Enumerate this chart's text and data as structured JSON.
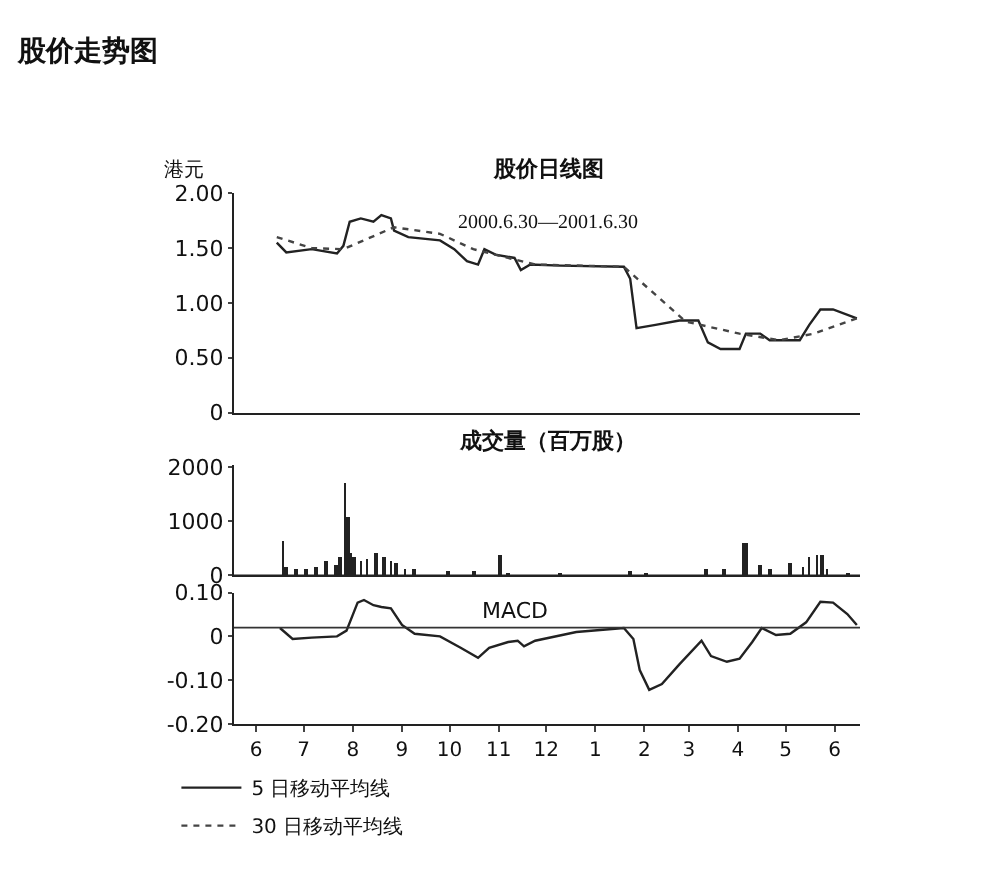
{
  "chart_data": [
    {
      "type": "line",
      "title": "股价日线图",
      "subtitle": "2000.6.30—2001.6.30",
      "ylabel": "港元",
      "annotations": [
        "股价走势图"
      ],
      "xlim": [
        "2000-06-01",
        "2001-07-01"
      ],
      "ylim": [
        0,
        2
      ],
      "yticks": [
        0,
        {
          "value": 0.5,
          "label": "0.50"
        },
        {
          "value": 1,
          "label": "1.00"
        },
        {
          "value": 1.5,
          "label": "1.50"
        },
        {
          "value": 2,
          "label": "2.00"
        }
      ],
      "tick_labels": "y",
      "legend": "bottom left",
      "series": [
        {
          "name": "5 日移动平均线",
          "color": "#222222",
          "line_style": "solid",
          "x": [
            "2000-06-28",
            "2000-07-04",
            "2000-07-20",
            "2000-08-05",
            "2000-08-09",
            "2000-08-13",
            "2000-08-20",
            "2000-08-28",
            "2000-09-02",
            "2000-09-08",
            "2000-09-10",
            "2000-09-19",
            "2000-10-09",
            "2000-10-18",
            "2000-10-26",
            "2000-11-02",
            "2000-11-06",
            "2000-11-13",
            "2000-11-25",
            "2000-11-29",
            "2000-12-05",
            "2000-12-24",
            "2001-02-02",
            "2001-02-06",
            "2001-02-10",
            "2001-02-22",
            "2001-03-09",
            "2001-03-21",
            "2001-03-27",
            "2001-04-04",
            "2001-04-16",
            "2001-04-20",
            "2001-04-29",
            "2001-05-05",
            "2001-05-24",
            "2001-05-30",
            "2001-06-06",
            "2001-06-14",
            "2001-06-29"
          ],
          "values": [
            1.55,
            1.46,
            1.49,
            1.45,
            1.52,
            1.74,
            1.77,
            1.74,
            1.8,
            1.77,
            1.66,
            1.6,
            1.57,
            1.49,
            1.38,
            1.35,
            1.49,
            1.44,
            1.41,
            1.3,
            1.35,
            1.34,
            1.33,
            1.22,
            0.77,
            0.8,
            0.84,
            0.84,
            0.64,
            0.58,
            0.58,
            0.72,
            0.72,
            0.66,
            0.66,
            0.8,
            0.94,
            0.94,
            0.86
          ]
        },
        {
          "name": "30 日移动平均线",
          "color": "#444444",
          "line_style": "dotted",
          "x": [
            "2000-06-28",
            "2000-07-20",
            "2000-08-09",
            "2000-09-10",
            "2000-10-09",
            "2000-10-30",
            "2000-11-21",
            "2000-12-08",
            "2001-02-02",
            "2001-03-13",
            "2001-04-16",
            "2001-05-11",
            "2001-06-02",
            "2001-06-29"
          ],
          "values": [
            1.6,
            1.5,
            1.49,
            1.69,
            1.63,
            1.49,
            1.41,
            1.35,
            1.33,
            0.83,
            0.72,
            0.66,
            0.72,
            0.86
          ]
        }
      ]
    },
    {
      "type": "bar",
      "title": "成交量（百万股）",
      "color": "#222222",
      "xlim": [
        "2000-06-01",
        "2001-07-01"
      ],
      "ylim": [
        0,
        2050
      ],
      "yticks": [
        0,
        1000,
        2000
      ],
      "tick_labels": "y",
      "x": [
        "2000-07-02",
        "2000-07-04",
        "2000-07-10",
        "2000-07-16",
        "2000-07-23",
        "2000-07-29",
        "2000-08-04",
        "2000-08-07",
        "2000-08-10",
        "2000-08-12",
        "2000-08-14",
        "2000-08-16",
        "2000-08-20",
        "2000-08-24",
        "2000-08-30",
        "2000-09-04",
        "2000-09-08",
        "2000-09-11",
        "2000-09-17",
        "2000-09-23",
        "2000-10-14",
        "2000-10-30",
        "2000-11-16",
        "2000-11-21",
        "2000-12-24",
        "2001-02-06",
        "2001-02-16",
        "2001-03-26",
        "2001-04-06",
        "2001-04-18",
        "2001-04-20",
        "2001-04-29",
        "2001-05-05",
        "2001-05-18",
        "2001-05-26",
        "2001-05-30",
        "2001-06-04",
        "2001-06-07",
        "2001-06-10",
        "2001-06-23"
      ],
      "values": [
        640,
        180,
        130,
        130,
        180,
        260,
        200,
        330,
        1700,
        1090,
        430,
        330,
        280,
        300,
        430,
        330,
        260,
        230,
        130,
        130,
        100,
        80,
        380,
        60,
        40,
        100,
        60,
        130,
        130,
        610,
        590,
        200,
        130,
        230,
        180,
        330,
        380,
        400,
        130,
        60
      ]
    },
    {
      "type": "line",
      "color": "#222222",
      "xlim": [
        "2000-06-01",
        "2001-07-01"
      ],
      "ylim": [
        -0.2,
        0.1
      ],
      "xticks": [
        {
          "value": "2000-06-15",
          "label": "6"
        },
        {
          "value": "2000-07-15",
          "label": "7"
        },
        {
          "value": "2000-08-15",
          "label": "8"
        },
        {
          "value": "2000-09-15",
          "label": "9"
        },
        {
          "value": "2000-10-15",
          "label": "10"
        },
        {
          "value": "2000-11-15",
          "label": "11"
        },
        {
          "value": "2000-12-15",
          "label": "12"
        },
        {
          "value": "2001-01-15",
          "label": "1"
        },
        {
          "value": "2001-02-15",
          "label": "2"
        },
        {
          "value": "2001-03-15",
          "label": "3"
        },
        {
          "value": "2001-04-15",
          "label": "4"
        },
        {
          "value": "2001-05-15",
          "label": "5"
        },
        {
          "value": "2001-06-15",
          "label": "6"
        }
      ],
      "yticks": [
        {
          "value": 0.1,
          "label": "0.10"
        },
        0,
        {
          "value": -0.1,
          "label": "-0.10"
        },
        {
          "value": -0.2,
          "label": "-0.20"
        }
      ],
      "ref_lines": [
        {
          "axis": "y",
          "value": 0.02,
          "label": "MACD"
        }
      ],
      "x": [
        "2000-06-30",
        "2000-07-08",
        "2000-07-20",
        "2000-08-05",
        "2000-08-11",
        "2000-08-18",
        "2000-08-22",
        "2000-08-28",
        "2000-09-02",
        "2000-09-08",
        "2000-09-15",
        "2000-09-23",
        "2000-10-09",
        "2000-10-22",
        "2000-11-02",
        "2000-11-09",
        "2000-11-21",
        "2000-11-27",
        "2000-12-01",
        "2000-12-08",
        "2001-01-03",
        "2001-02-02",
        "2001-02-08",
        "2001-02-12",
        "2001-02-18",
        "2001-02-26",
        "2001-03-09",
        "2001-03-23",
        "2001-03-29",
        "2001-04-08",
        "2001-04-16",
        "2001-04-24",
        "2001-04-30",
        "2001-05-09",
        "2001-05-18",
        "2001-05-28",
        "2001-06-06",
        "2001-06-14",
        "2001-06-23",
        "2001-06-29"
      ],
      "values": [
        0.019,
        -0.006,
        -0.003,
        0,
        0.013,
        0.077,
        0.083,
        0.071,
        0.067,
        0.064,
        0.026,
        0.006,
        0,
        -0.026,
        -0.049,
        -0.026,
        -0.013,
        -0.01,
        -0.023,
        -0.01,
        0.01,
        0.019,
        -0.006,
        -0.077,
        -0.122,
        -0.109,
        -0.064,
        -0.01,
        -0.045,
        -0.058,
        -0.051,
        -0.013,
        0.019,
        0.003,
        0.006,
        0.032,
        0.079,
        0.077,
        0.051,
        0.026
      ]
    }
  ]
}
